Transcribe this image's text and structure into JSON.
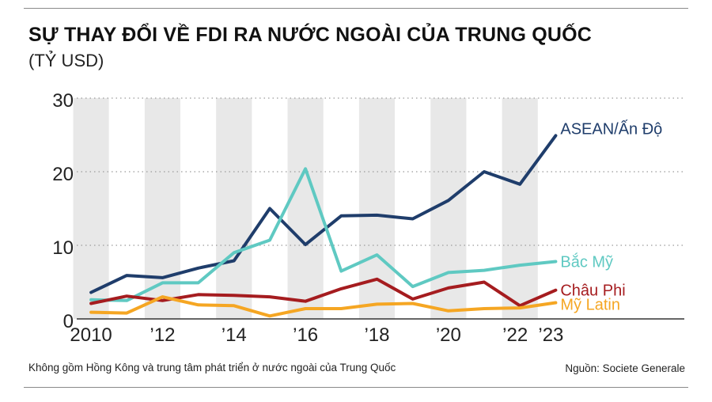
{
  "header": {
    "title": "SỰ THAY ĐỔI VỀ FDI RA NƯỚC NGOÀI CỦA TRUNG QUỐC",
    "subtitle": "(TỶ USD)"
  },
  "footer": {
    "note": "Không gồm Hồng Kông và trung tâm phát triển ở nước ngoài của Trung Quốc",
    "source": "Nguồn: Societe Generale"
  },
  "chart_data": {
    "type": "line",
    "title": "SỰ THAY ĐỔI VỀ FDI RA NƯỚC NGOÀI CỦA TRUNG QUỐC",
    "ylabel": "(TỶ USD)",
    "x": [
      2010,
      2011,
      2012,
      2013,
      2014,
      2015,
      2016,
      2017,
      2018,
      2019,
      2020,
      2021,
      2022,
      2023
    ],
    "xlim": [
      2009.6,
      2026.6
    ],
    "ylim": [
      0,
      30
    ],
    "yticks": [
      0,
      10,
      20,
      30
    ],
    "ytick_labels": [
      "0",
      "10",
      "20",
      "30"
    ],
    "xticks": [
      2010,
      2012,
      2014,
      2016,
      2018,
      2020,
      2022,
      2023
    ],
    "xtick_labels": [
      "2010",
      "’12",
      "’14",
      "’16",
      "’18",
      "’20",
      "’22",
      "’23"
    ],
    "grid": "horizontal-dotted",
    "shaded_columns": [
      2010,
      2012,
      2014,
      2016,
      2018,
      2020,
      2022
    ],
    "shade_color": "#e8e8e8",
    "legend": "inline-right",
    "series": [
      {
        "name": "ASEAN/Ấn Độ",
        "color": "#1f3d6b",
        "values": [
          3.6,
          5.9,
          5.6,
          6.9,
          7.9,
          15.0,
          10.1,
          14.0,
          14.1,
          13.6,
          16.1,
          20.0,
          18.3,
          24.9
        ]
      },
      {
        "name": "Bắc Mỹ",
        "color": "#5fc9c2",
        "values": [
          2.6,
          2.5,
          4.9,
          4.9,
          9.0,
          10.7,
          20.4,
          6.5,
          8.7,
          4.4,
          6.3,
          6.6,
          7.3,
          7.8
        ]
      },
      {
        "name": "Châu Phi",
        "color": "#a51c1f",
        "values": [
          2.1,
          3.1,
          2.5,
          3.3,
          3.2,
          3.0,
          2.4,
          4.1,
          5.4,
          2.7,
          4.2,
          5.0,
          1.8,
          3.9
        ]
      },
      {
        "name": "Mỹ Latin",
        "color": "#f5a623",
        "values": [
          0.9,
          0.8,
          3.0,
          1.9,
          1.8,
          0.4,
          1.4,
          1.4,
          2.0,
          2.1,
          1.1,
          1.4,
          1.5,
          2.2
        ]
      }
    ]
  }
}
